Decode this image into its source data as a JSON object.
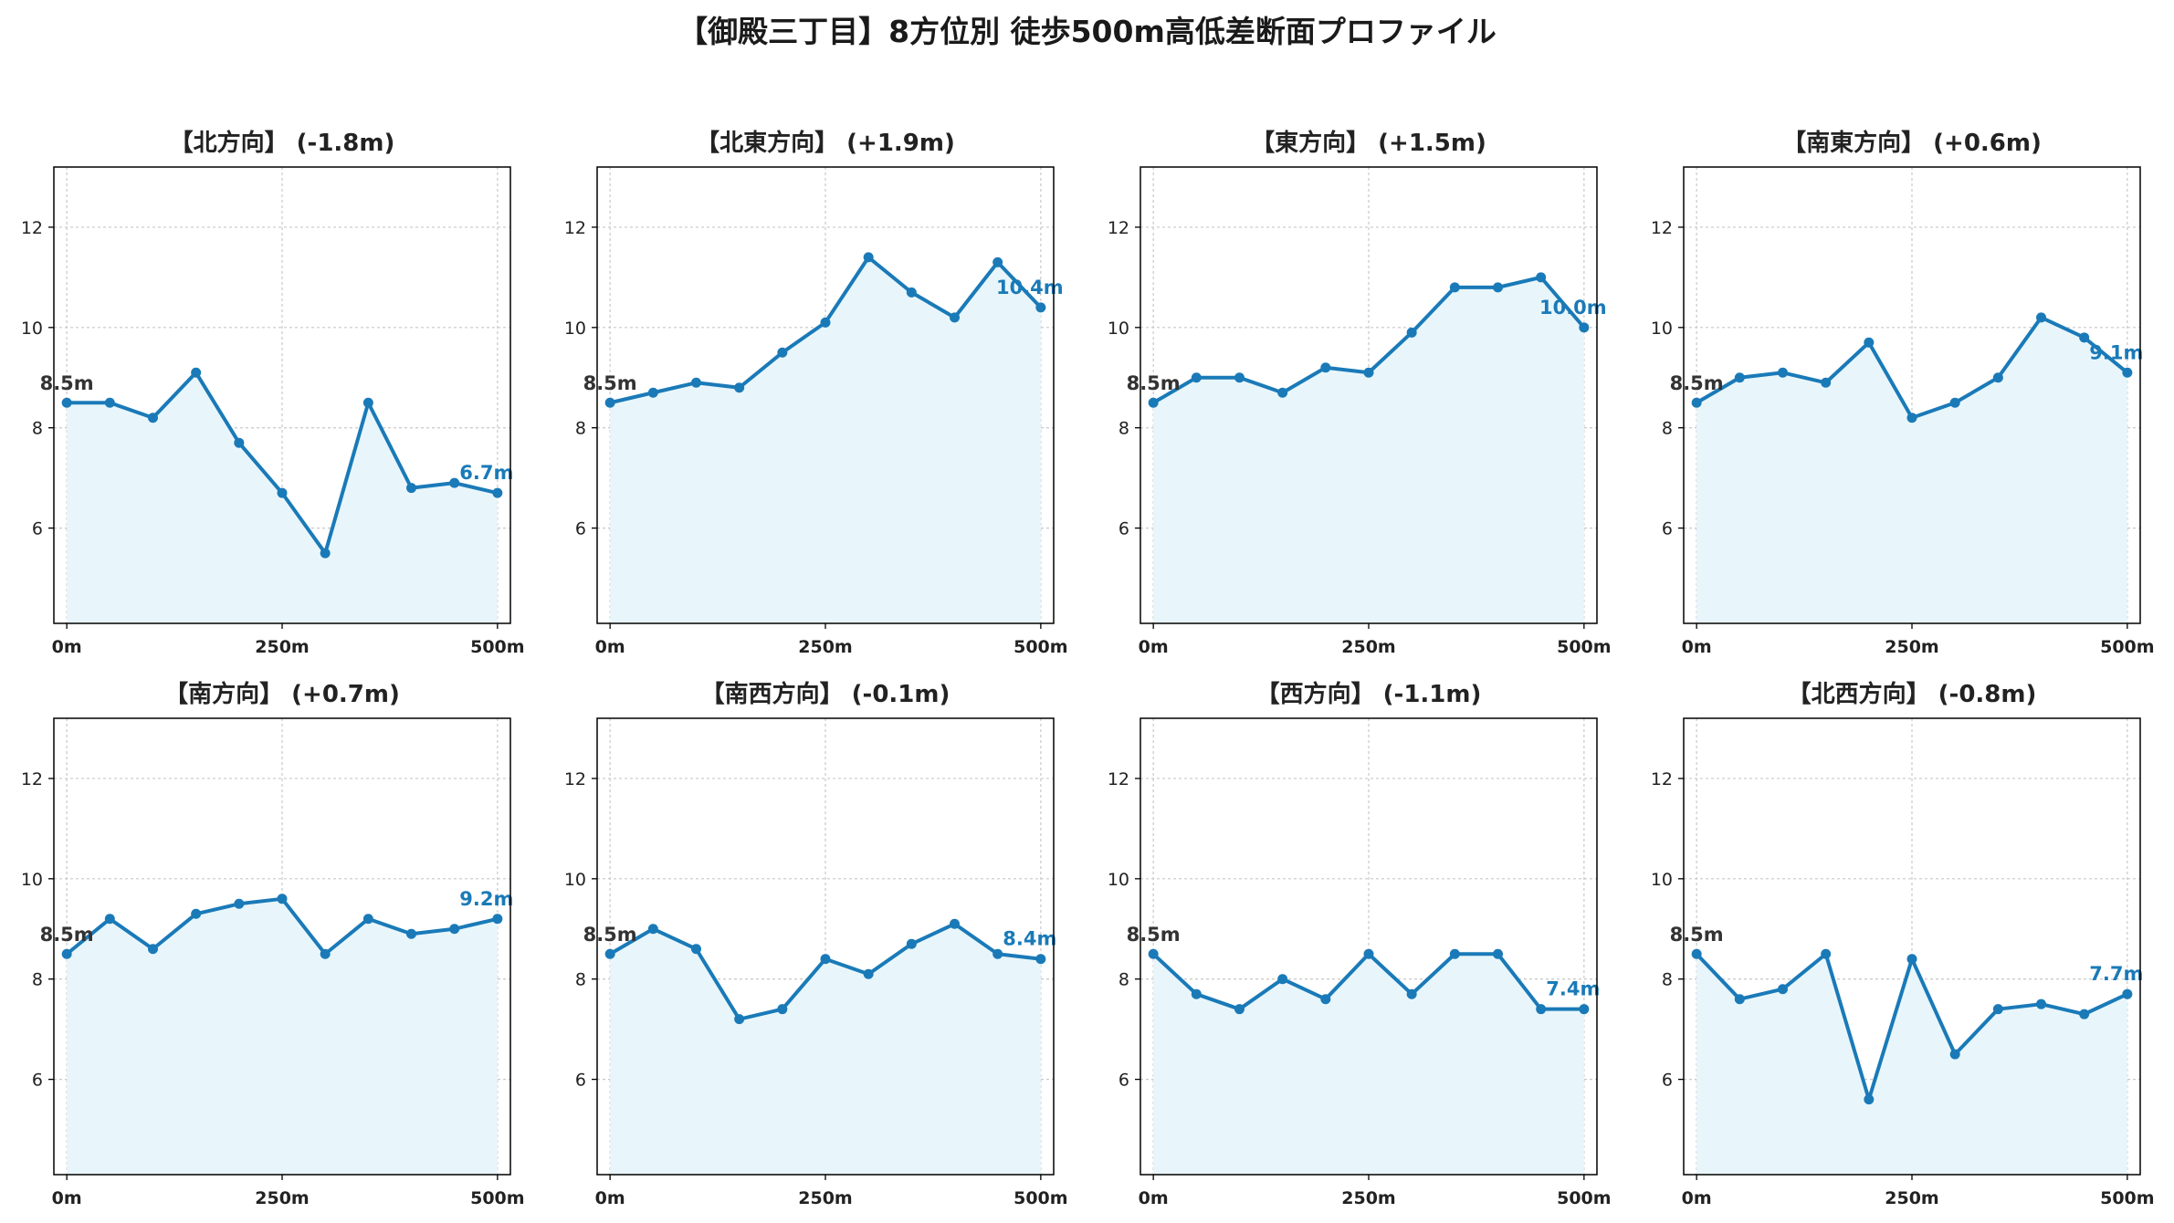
{
  "title": "【御殿三丁目】8方位別 徒歩500m高低差断面プロファイル",
  "colors": {
    "line": "#1a7ab8",
    "fill": "#e8f6fb",
    "grid": "#c8c8c8",
    "axis": "#000000"
  },
  "chart_data": [
    {
      "type": "line",
      "title": "【北方向】 (-1.8m)",
      "x": [
        0,
        50,
        100,
        150,
        200,
        250,
        300,
        350,
        400,
        450,
        500
      ],
      "values": [
        8.5,
        8.5,
        8.2,
        9.1,
        7.7,
        6.7,
        5.5,
        8.5,
        6.8,
        6.9,
        6.7
      ],
      "start_label": "8.5m",
      "end_label": "6.7m",
      "ylim": [
        4.1,
        13.2
      ],
      "yticks": [
        "6",
        "8",
        "10",
        "12"
      ],
      "xticks": [
        "0m",
        "250m",
        "500m"
      ],
      "grid": true
    },
    {
      "type": "line",
      "title": "【北東方向】 (+1.9m)",
      "x": [
        0,
        50,
        100,
        150,
        200,
        250,
        300,
        350,
        400,
        450,
        500
      ],
      "values": [
        8.5,
        8.7,
        8.9,
        8.8,
        9.5,
        10.1,
        11.4,
        10.7,
        10.2,
        11.3,
        10.4
      ],
      "start_label": "8.5m",
      "end_label": "10.4m",
      "ylim": [
        4.1,
        13.2
      ],
      "yticks": [
        "6",
        "8",
        "10",
        "12"
      ],
      "xticks": [
        "0m",
        "250m",
        "500m"
      ],
      "grid": true
    },
    {
      "type": "line",
      "title": "【東方向】 (+1.5m)",
      "x": [
        0,
        50,
        100,
        150,
        200,
        250,
        300,
        350,
        400,
        450,
        500
      ],
      "values": [
        8.5,
        9.0,
        9.0,
        8.7,
        9.2,
        9.1,
        9.9,
        10.8,
        10.8,
        11.0,
        10.0
      ],
      "start_label": "8.5m",
      "end_label": "10.0m",
      "ylim": [
        4.1,
        13.2
      ],
      "yticks": [
        "6",
        "8",
        "10",
        "12"
      ],
      "xticks": [
        "0m",
        "250m",
        "500m"
      ],
      "grid": true
    },
    {
      "type": "line",
      "title": "【南東方向】 (+0.6m)",
      "x": [
        0,
        50,
        100,
        150,
        200,
        250,
        300,
        350,
        400,
        450,
        500
      ],
      "values": [
        8.5,
        9.0,
        9.1,
        8.9,
        9.7,
        8.2,
        8.5,
        9.0,
        10.2,
        9.8,
        9.1
      ],
      "start_label": "8.5m",
      "end_label": "9.1m",
      "ylim": [
        4.1,
        13.2
      ],
      "yticks": [
        "6",
        "8",
        "10",
        "12"
      ],
      "xticks": [
        "0m",
        "250m",
        "500m"
      ],
      "grid": true
    },
    {
      "type": "line",
      "title": "【南方向】 (+0.7m)",
      "x": [
        0,
        50,
        100,
        150,
        200,
        250,
        300,
        350,
        400,
        450,
        500
      ],
      "values": [
        8.5,
        9.2,
        8.6,
        9.3,
        9.5,
        9.6,
        8.5,
        9.2,
        8.9,
        9.0,
        9.2
      ],
      "start_label": "8.5m",
      "end_label": "9.2m",
      "ylim": [
        4.1,
        13.2
      ],
      "yticks": [
        "6",
        "8",
        "10",
        "12"
      ],
      "xticks": [
        "0m",
        "250m",
        "500m"
      ],
      "grid": true
    },
    {
      "type": "line",
      "title": "【南西方向】 (-0.1m)",
      "x": [
        0,
        50,
        100,
        150,
        200,
        250,
        300,
        350,
        400,
        450,
        500
      ],
      "values": [
        8.5,
        9.0,
        8.6,
        7.2,
        7.4,
        8.4,
        8.1,
        8.7,
        9.1,
        8.5,
        8.4
      ],
      "start_label": "8.5m",
      "end_label": "8.4m",
      "ylim": [
        4.1,
        13.2
      ],
      "yticks": [
        "6",
        "8",
        "10",
        "12"
      ],
      "xticks": [
        "0m",
        "250m",
        "500m"
      ],
      "grid": true
    },
    {
      "type": "line",
      "title": "【西方向】 (-1.1m)",
      "x": [
        0,
        50,
        100,
        150,
        200,
        250,
        300,
        350,
        400,
        450,
        500
      ],
      "values": [
        8.5,
        7.7,
        7.4,
        8.0,
        7.6,
        8.5,
        7.7,
        8.5,
        8.5,
        7.4,
        7.4
      ],
      "start_label": "8.5m",
      "end_label": "7.4m",
      "ylim": [
        4.1,
        13.2
      ],
      "yticks": [
        "6",
        "8",
        "10",
        "12"
      ],
      "xticks": [
        "0m",
        "250m",
        "500m"
      ],
      "grid": true
    },
    {
      "type": "line",
      "title": "【北西方向】 (-0.8m)",
      "x": [
        0,
        50,
        100,
        150,
        200,
        250,
        300,
        350,
        400,
        450,
        500
      ],
      "values": [
        8.5,
        7.6,
        7.8,
        8.5,
        5.6,
        8.4,
        6.5,
        7.4,
        7.5,
        7.3,
        7.7
      ],
      "start_label": "8.5m",
      "end_label": "7.7m",
      "ylim": [
        4.1,
        13.2
      ],
      "yticks": [
        "6",
        "8",
        "10",
        "12"
      ],
      "xticks": [
        "0m",
        "250m",
        "500m"
      ],
      "grid": true
    }
  ]
}
